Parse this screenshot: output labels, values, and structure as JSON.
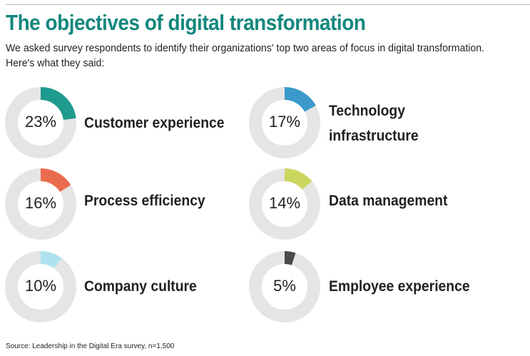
{
  "header": {
    "title": "The objectives of digital transformation",
    "subtitle": "We asked survey respondents to identify their organizations' top two areas of focus in digital transformation. Here's what they said:"
  },
  "footer": {
    "source": "Source: Leadership in the Digital Era survey, n=1,500"
  },
  "colors": {
    "title": "#13877c",
    "track": "#e5e5e5",
    "text": "#231f20"
  },
  "chart_data": {
    "type": "pie",
    "subtype": "donut-grid",
    "title": "The objectives of digital transformation",
    "unit": "%",
    "items": [
      {
        "label": "Customer experience",
        "value": 23,
        "display": "23%",
        "color": "#1f9a8e"
      },
      {
        "label": "Technology infrastructure",
        "value": 17,
        "display": "17%",
        "color": "#3b9ac9"
      },
      {
        "label": "Process efficiency",
        "value": 16,
        "display": "16%",
        "color": "#ea6b4d"
      },
      {
        "label": "Data management",
        "value": 14,
        "display": "14%",
        "color": "#cbd65f"
      },
      {
        "label": "Company culture",
        "value": 10,
        "display": "10%",
        "color": "#ade3ef"
      },
      {
        "label": "Employee experience",
        "value": 5,
        "display": "5%",
        "color": "#4a4a4a"
      }
    ]
  }
}
